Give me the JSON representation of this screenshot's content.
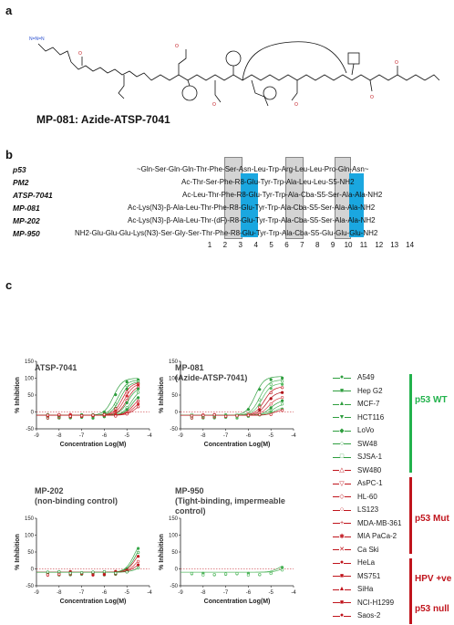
{
  "panel_a": {
    "letter": "a",
    "caption": "MP-081: Azide-ATSP-7041"
  },
  "panel_b": {
    "letter": "b",
    "rows": [
      {
        "name": "p53",
        "seq": "~Gln-Ser-Gln-Gln-Thr-Phe-Ser-Asn-Leu-Trp-Arg-Leu-Leu-Pro-Gln-Asn~"
      },
      {
        "name": "PM2",
        "seq": "Ac-Thr-Ser-Phe-R8-Glu-Tyr-Trp-Ala-Leu-Leu-S5-NH2"
      },
      {
        "name": "ATSP-7041",
        "seq": "Ac-Leu-Thr-Phe-R8-Glu-Tyr-Trp-Ala-Cba-S5-Ser-Ala-Ala-NH2"
      },
      {
        "name": "MP-081",
        "seq": "Ac-Lys(N3)-β-Ala-Leu-Thr-Phe-R8-Glu-Tyr-Trp-Ala-Cba-S5-Ser-Ala-Ala-NH2"
      },
      {
        "name": "MP-202",
        "seq": "Ac-Lys(N3)-β-Ala-Leu-Thr-(dF)-R8-Glu-Tyr-Trp-Ala-Cba-S5-Ser-Ala-Ala-NH2"
      },
      {
        "name": "MP-950",
        "seq": "NH2-Glu-Glu-Glu-Lys(N3)-Ser-Gly-Ser-Thr-Phe-R8-Glu-Tyr-Trp-Ala-Cba-S5-Glu-Glu-Glu-NH2"
      }
    ],
    "positions": [
      "1",
      "2",
      "3",
      "4",
      "5",
      "6",
      "7",
      "8",
      "9",
      "10",
      "11",
      "12",
      "13",
      "14"
    ]
  },
  "panel_c": {
    "letter": "c",
    "charts": [
      {
        "title1": "ATSP-7041",
        "title2": ""
      },
      {
        "title1": "MP-081",
        "title2": "(Azide-ATSP-7041)"
      },
      {
        "title1": "MP-202",
        "title2": "(non-binding control)"
      },
      {
        "title1": "MP-950",
        "title2": "(Tight-binding, impermeable control)"
      }
    ],
    "legend": [
      {
        "label": "A549",
        "color": "#2e9e3e",
        "marker": "●"
      },
      {
        "label": "Hep G2",
        "color": "#2e9e3e",
        "marker": "■"
      },
      {
        "label": "MCF-7",
        "color": "#2e9e3e",
        "marker": "▲"
      },
      {
        "label": "HCT116",
        "color": "#2e9e3e",
        "marker": "▼"
      },
      {
        "label": "LoVo",
        "color": "#2e9e3e",
        "marker": "◆"
      },
      {
        "label": "SW48",
        "color": "#2e9e3e",
        "marker": "○"
      },
      {
        "label": "SJSA-1",
        "color": "#2e9e3e",
        "marker": "□"
      },
      {
        "label": "SW480",
        "color": "#c0141c",
        "marker": "△"
      },
      {
        "label": "AsPC-1",
        "color": "#c0141c",
        "marker": "▽"
      },
      {
        "label": "HL-60",
        "color": "#c0141c",
        "marker": "◇"
      },
      {
        "label": "LS123",
        "color": "#c0141c",
        "marker": "○"
      },
      {
        "label": "MDA-MB-361",
        "color": "#c0141c",
        "marker": "+"
      },
      {
        "label": "MIA PaCa-2",
        "color": "#c0141c",
        "marker": "✱"
      },
      {
        "label": "Ca Ski",
        "color": "#c0141c",
        "marker": "✕"
      },
      {
        "label": "HeLa",
        "color": "#c0141c",
        "marker": "●"
      },
      {
        "label": "MS751",
        "color": "#c0141c",
        "marker": "■"
      },
      {
        "label": "SiHa",
        "color": "#c0141c",
        "marker": "▲"
      },
      {
        "label": "NCI-H1299",
        "color": "#c0141c",
        "marker": "■"
      },
      {
        "label": "Saos-2",
        "color": "#c0141c",
        "marker": "●"
      }
    ],
    "groups": [
      {
        "label": "p53 WT",
        "color": "#22b24c"
      },
      {
        "label": "p53 Mut",
        "color": "#c0141c"
      },
      {
        "label": "HPV +ve",
        "color": "#c0141c"
      },
      {
        "label": "p53 null",
        "color": "#c0141c"
      }
    ]
  },
  "chart_data": [
    {
      "type": "line",
      "title": "ATSP-7041",
      "xlabel": "Concentration Log(M)",
      "ylabel": "% Inhibition",
      "xlim": [
        -9,
        -4
      ],
      "ylim": [
        -50,
        150
      ],
      "x_ticks": [
        "-9",
        "-8",
        "-7",
        "-6",
        "-5",
        "-4"
      ],
      "y_ticks": [
        "-50",
        "0",
        "50",
        "100",
        "150"
      ],
      "curve_ec50": [
        -5.6,
        -5.4,
        -5.3,
        -5.2,
        -5.1,
        -5.0,
        -4.95,
        -4.8,
        -4.75,
        -4.7,
        -4.65,
        -4.6
      ],
      "curve_top": [
        100,
        95,
        90,
        88,
        85,
        80,
        75,
        70,
        60,
        50,
        40,
        30
      ]
    },
    {
      "type": "line",
      "title": "MP-081 (Azide-ATSP-7041)",
      "xlabel": "Concentration Log(M)",
      "ylabel": "% Inhibition",
      "xlim": [
        -9,
        -4
      ],
      "ylim": [
        -50,
        150
      ],
      "x_ticks": [
        "-9",
        "-8",
        "-7",
        "-6",
        "-5",
        "-4"
      ],
      "y_ticks": [
        "-50",
        "0",
        "50",
        "100",
        "150"
      ],
      "curve_ec50": [
        -5.7,
        -5.5,
        -5.4,
        -5.3,
        -5.2,
        -5.1,
        -5.0,
        -4.9,
        -4.85,
        -4.8
      ],
      "curve_top": [
        105,
        95,
        85,
        75,
        60,
        45,
        35,
        25,
        15,
        10
      ]
    },
    {
      "type": "line",
      "title": "MP-202 (non-binding control)",
      "xlabel": "Concentration Log(M)",
      "ylabel": "% Inhibition",
      "xlim": [
        -9,
        -4
      ],
      "ylim": [
        -50,
        150
      ],
      "x_ticks": [
        "-9",
        "-8",
        "-7",
        "-6",
        "-5",
        "-4"
      ],
      "y_ticks": [
        "-50",
        "0",
        "50",
        "100",
        "150"
      ],
      "curve_ec50": [
        -4.65,
        -4.6,
        -4.6,
        -4.55,
        -4.55,
        -4.5
      ],
      "curve_top": [
        100,
        90,
        70,
        50,
        30,
        15
      ]
    },
    {
      "type": "line",
      "title": "MP-950 (Tight-binding, impermeable control)",
      "xlabel": "Concentration Log(M)",
      "ylabel": "% Inhibition",
      "xlim": [
        -9,
        -4
      ],
      "ylim": [
        -50,
        150
      ],
      "x_ticks": [
        "-9",
        "-8",
        "-7",
        "-6",
        "-5",
        "-4"
      ],
      "y_ticks": [
        "-50",
        "0",
        "50",
        "100",
        "150"
      ],
      "curve_ec50": [
        -4.6,
        -4.5
      ],
      "curve_top": [
        20,
        10
      ]
    }
  ]
}
